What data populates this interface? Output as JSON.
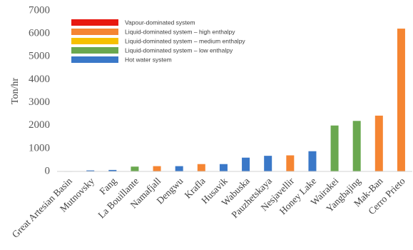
{
  "chart_data": {
    "type": "bar",
    "ylabel": "Ton/hr",
    "ylim": [
      0,
      7000
    ],
    "yticks": [
      "0",
      "1000",
      "2000",
      "3000",
      "4000",
      "5000",
      "6000",
      "7000"
    ],
    "categories": [
      "Great Artesian Basin",
      "Mutnovsky",
      "Fang",
      "La Bouillante",
      "Namafjall",
      "Dengwu",
      "Krafla",
      "Husavik",
      "Wabuska",
      "Pauzhetskaya",
      "Nesjavellir",
      "Honey Lake",
      "Wairakei",
      "Yangbajing",
      "Mak-Ban",
      "Cerro Prieto"
    ],
    "values": [
      15,
      45,
      65,
      210,
      230,
      230,
      320,
      320,
      600,
      680,
      700,
      880,
      2000,
      2200,
      2430,
      6220
    ],
    "bar_types": [
      4,
      4,
      4,
      3,
      1,
      4,
      1,
      4,
      4,
      4,
      1,
      4,
      3,
      3,
      1,
      1
    ],
    "grid": false,
    "legend": {
      "position": "top-left",
      "entries": [
        {
          "name": "Vapour-dominated system",
          "color": "#e8180f"
        },
        {
          "name": "Liquid-dominated system – high enthalpy",
          "color": "#f58532"
        },
        {
          "name": "Liquid-dominated system – medium enthalpy",
          "color": "#f6c000"
        },
        {
          "name": "Liquid-dominated system – low enthalpy",
          "color": "#6aa84f"
        },
        {
          "name": "Hot water system",
          "color": "#3a78c8"
        }
      ]
    }
  }
}
